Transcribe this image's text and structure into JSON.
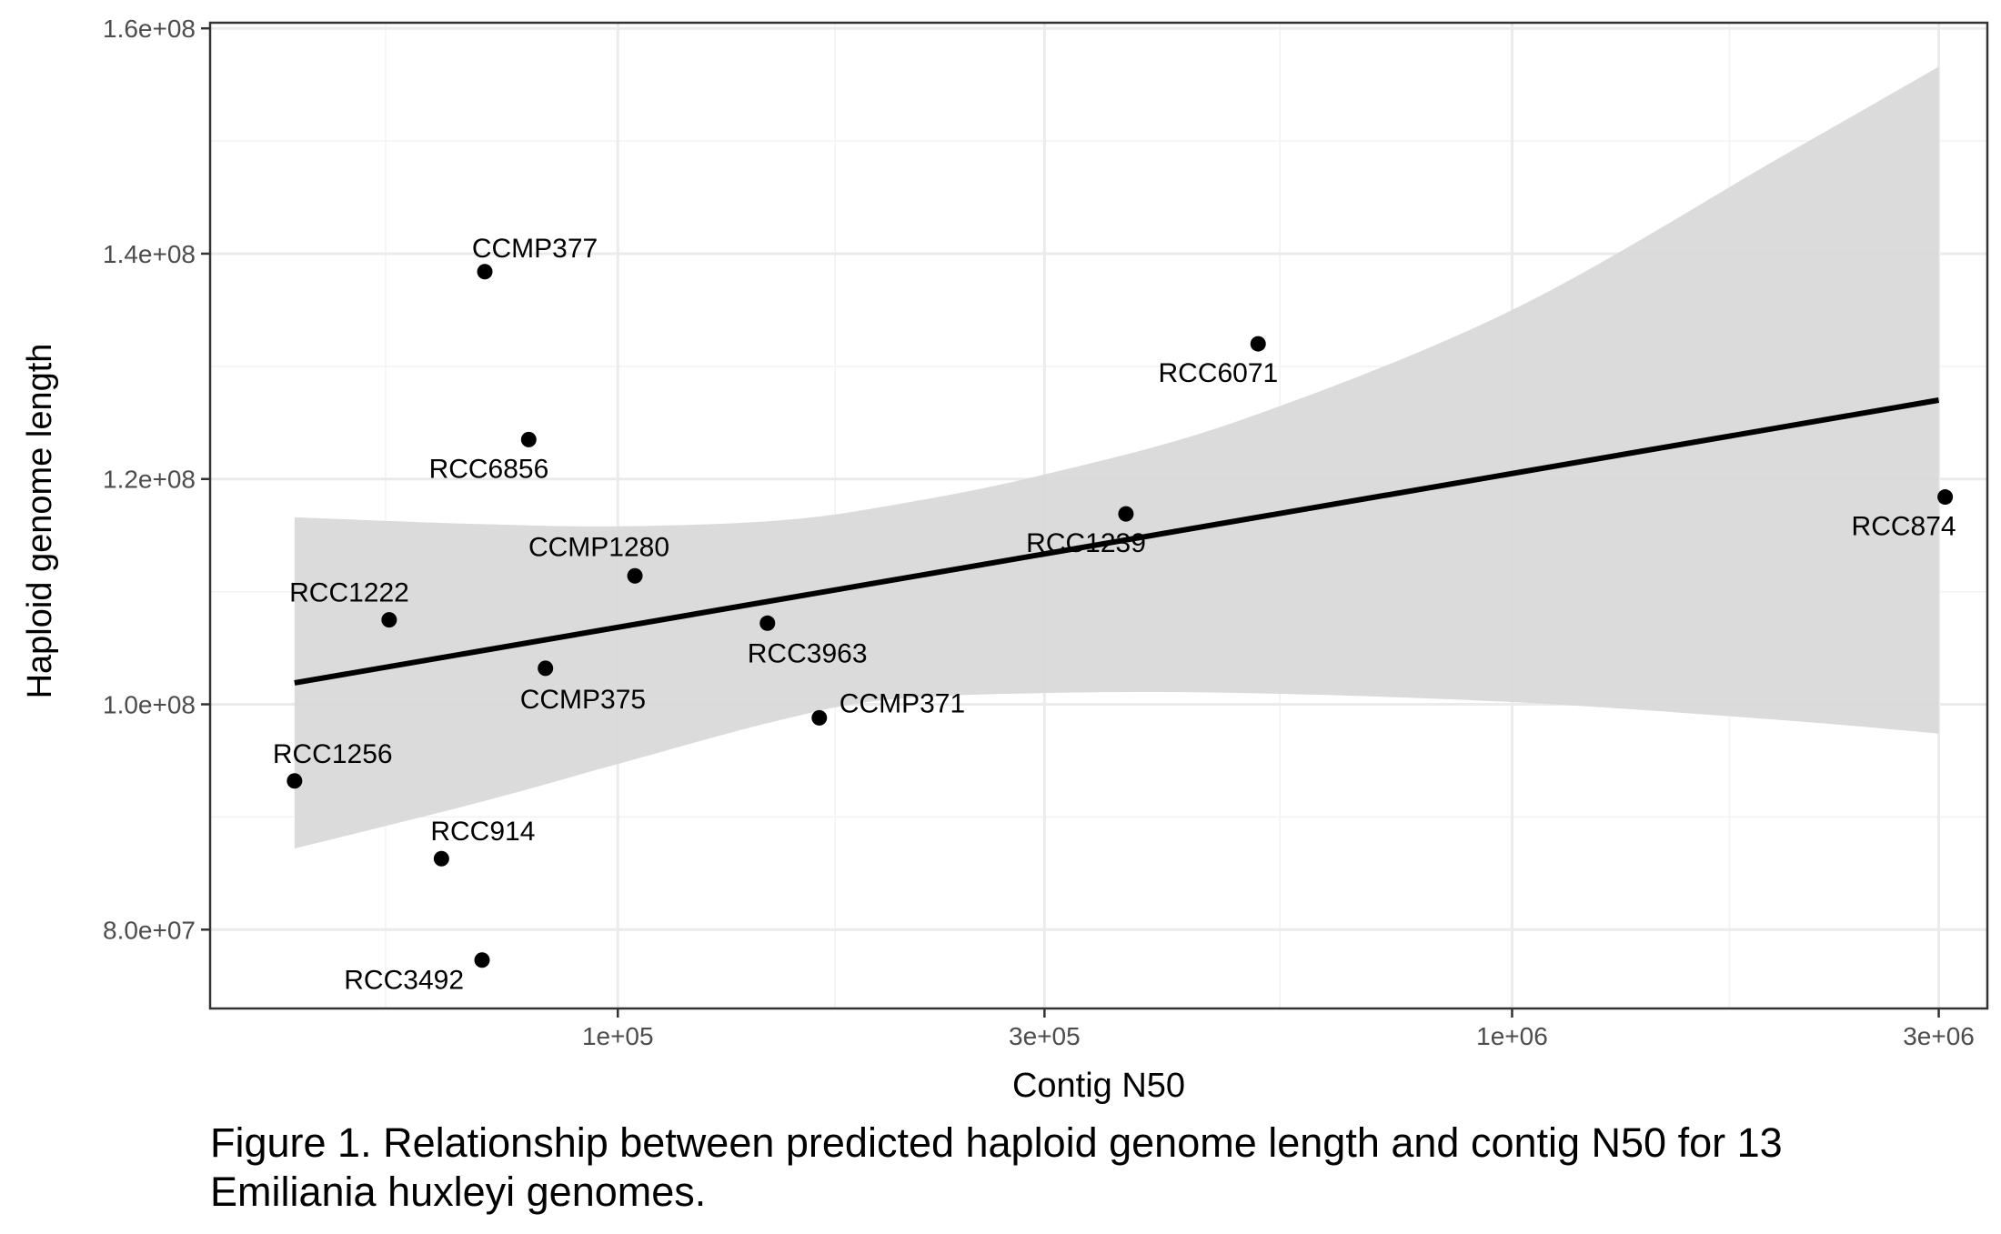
{
  "chart_data": {
    "type": "scatter",
    "xlabel": "Contig N50",
    "ylabel": "Haploid genome length",
    "x_scale": "log10",
    "xlim": [
      35000,
      3400000
    ],
    "ylim": [
      73000000,
      160500000
    ],
    "x_ticks": [
      {
        "value": 100000,
        "label": "1e+05"
      },
      {
        "value": 300000,
        "label": "3e+05"
      },
      {
        "value": 1000000,
        "label": "1e+06"
      },
      {
        "value": 3000000,
        "label": "3e+06"
      }
    ],
    "x_minor_ticks": [
      55000,
      175000,
      550000,
      1750000
    ],
    "y_ticks": [
      {
        "value": 80000000,
        "label": "8.0e+07"
      },
      {
        "value": 100000000,
        "label": "1.0e+08"
      },
      {
        "value": 120000000,
        "label": "1.2e+08"
      },
      {
        "value": 140000000,
        "label": "1.4e+08"
      },
      {
        "value": 160000000,
        "label": "1.6e+08"
      }
    ],
    "y_minor_ticks": [
      90000000,
      110000000,
      130000000,
      150000000
    ],
    "grid": true,
    "points": [
      {
        "name": "CCMP377",
        "x": 71000,
        "y": 138400000,
        "label_pos": "above"
      },
      {
        "name": "RCC6856",
        "x": 79500,
        "y": 123500000,
        "label_pos": "below-left"
      },
      {
        "name": "CCMP1280",
        "x": 104500,
        "y": 111400000,
        "label_pos": "above-left"
      },
      {
        "name": "RCC1222",
        "x": 55500,
        "y": 107500000,
        "label_pos": "above-left"
      },
      {
        "name": "CCMP375",
        "x": 83000,
        "y": 103200000,
        "label_pos": "below-right"
      },
      {
        "name": "RCC3963",
        "x": 147000,
        "y": 107200000,
        "label_pos": "below"
      },
      {
        "name": "CCMP371",
        "x": 168000,
        "y": 98800000,
        "label_pos": "right"
      },
      {
        "name": "RCC1239",
        "x": 370000,
        "y": 116900000,
        "label_pos": "below-left"
      },
      {
        "name": "RCC6071",
        "x": 520000,
        "y": 132000000,
        "label_pos": "below-left"
      },
      {
        "name": "RCC874",
        "x": 3050000,
        "y": 118400000,
        "label_pos": "below-left"
      },
      {
        "name": "RCC1256",
        "x": 43500,
        "y": 93200000,
        "label_pos": "above-right"
      },
      {
        "name": "RCC914",
        "x": 63500,
        "y": 86300000,
        "label_pos": "above-right"
      },
      {
        "name": "RCC3492",
        "x": 70500,
        "y": 77300000,
        "label_pos": "below-left"
      }
    ],
    "trend": {
      "x": [
        43500,
        3000000
      ],
      "y": [
        101900000,
        127000000
      ]
    },
    "confidence_band": {
      "x": [
        43500,
        70000,
        100000,
        150000,
        200000,
        300000,
        500000,
        1000000,
        2000000,
        3000000
      ],
      "upper": [
        116600000,
        116000000,
        115800000,
        116300000,
        117600000,
        120400000,
        125300000,
        135000000,
        148600000,
        156600000
      ],
      "lower": [
        87200000,
        91300000,
        94700000,
        98500000,
        100400000,
        101000000,
        101000000,
        100200000,
        98600000,
        97400000
      ]
    },
    "colors": {
      "point": "#000000",
      "trend": "#000000",
      "band": "#d9d9d9",
      "grid_major": "#ebebeb",
      "grid_minor": "#f2f2f2",
      "panel_border": "#333333"
    }
  },
  "caption": "Figure 1. Relationship between predicted haploid genome length and contig N50 for 13 Emiliania huxleyi genomes."
}
